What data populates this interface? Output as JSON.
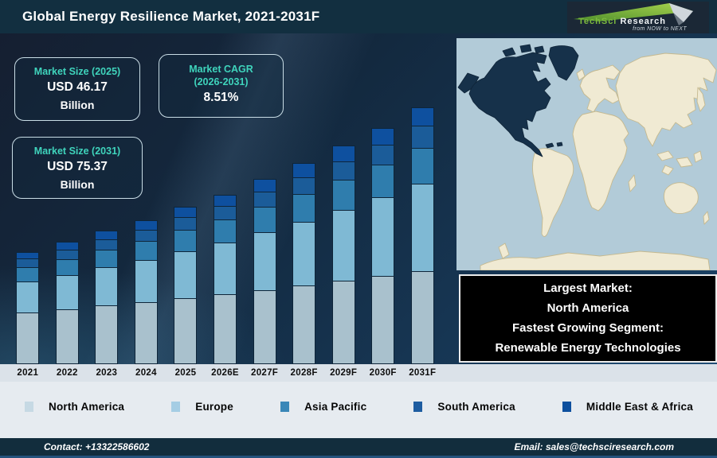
{
  "header": {
    "title": "Global Energy Resilience Market, 2021-2031F",
    "logo": {
      "brand_part1": "TechSci",
      "brand_part2": "Research",
      "tagline": "from NOW to NEXT"
    }
  },
  "stat_boxes": [
    {
      "label": "Market Size (2025)",
      "value": "USD 46.17",
      "unit": "Billion"
    },
    {
      "label": "Market CAGR",
      "label_line2": "(2026-2031)",
      "value": "8.51%"
    },
    {
      "label": "Market Size (2031)",
      "value": "USD 75.37",
      "unit": "Billion"
    }
  ],
  "chart_data": {
    "type": "bar",
    "stacked": true,
    "title": "Global Energy Resilience Market, 2021-2031F",
    "unit": "USD Billion",
    "xlabel": "",
    "ylabel": "",
    "ylim": [
      0,
      80
    ],
    "grid": false,
    "legend_position": "bottom",
    "categories": [
      "2021",
      "2022",
      "2023",
      "2024",
      "2025",
      "2026E",
      "2027F",
      "2028F",
      "2029F",
      "2030F",
      "2031F"
    ],
    "series": [
      {
        "name": "North America",
        "color": "#a9c1cd",
        "values": [
          15.0,
          15.9,
          17.0,
          18.0,
          19.1,
          20.3,
          21.5,
          22.8,
          24.2,
          25.6,
          27.1
        ]
      },
      {
        "name": "Europe",
        "color": "#7fb9d4",
        "values": [
          9.0,
          10.0,
          11.1,
          12.4,
          13.8,
          15.3,
          17.0,
          18.8,
          20.9,
          23.1,
          25.6
        ]
      },
      {
        "name": "Asia Pacific",
        "color": "#2f7dad",
        "values": [
          4.3,
          4.7,
          5.2,
          5.7,
          6.2,
          6.8,
          7.4,
          8.1,
          8.8,
          9.6,
          10.5
        ]
      },
      {
        "name": "South America",
        "color": "#1b5c99",
        "values": [
          2.5,
          2.7,
          3.0,
          3.3,
          3.7,
          4.0,
          4.4,
          4.9,
          5.4,
          5.9,
          6.5
        ]
      },
      {
        "name": "Middle East & Africa",
        "color": "#0e509f",
        "values": [
          2.2,
          2.5,
          2.7,
          3.0,
          3.3,
          3.6,
          4.0,
          4.4,
          4.8,
          5.2,
          5.7
        ]
      }
    ],
    "totals_estimated": [
      33.0,
      35.8,
      39.0,
      42.4,
      46.2,
      50.0,
      54.3,
      59.0,
      64.1,
      69.4,
      75.4
    ],
    "annotations": {
      "market_size_2025_usd_billion": 46.17,
      "market_size_2031_usd_billion": 75.37,
      "cagr_2026_2031_percent": 8.51
    }
  },
  "legend": [
    {
      "label": "North America",
      "color": "#c6d9e4"
    },
    {
      "label": "Europe",
      "color": "#a5cde4"
    },
    {
      "label": "Asia Pacific",
      "color": "#3a87b8"
    },
    {
      "label": "South America",
      "color": "#1d5ca0"
    },
    {
      "label": "Middle East & Africa",
      "color": "#0d4f9e"
    }
  ],
  "map": {
    "highlighted_region": "North America",
    "highlight_color": "#16314a",
    "land_color": "#f0ead3",
    "ocean_color": "#b2cbd8"
  },
  "callout": {
    "line1": "Largest Market:",
    "line2": "North America",
    "line3": "Fastest Growing Segment:",
    "line4": "Renewable Energy Technologies"
  },
  "footer": {
    "contact": "Contact: +13322586602",
    "email": "Email: sales@techsciresearch.com"
  },
  "colors": {
    "accent_teal": "#3fd4bc",
    "header_bg": "#122f40",
    "footer_bg": "#122d3d",
    "footer_line": "#24527c",
    "logo_green": "#7cb93e"
  }
}
